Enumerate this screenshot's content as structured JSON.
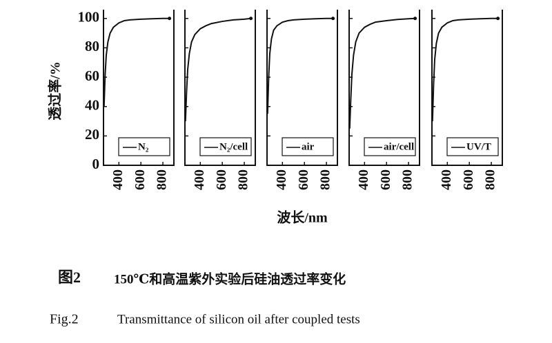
{
  "chart_data": [
    {
      "type": "line",
      "ylabel": "透过率/%",
      "x": [
        265,
        275,
        285,
        300,
        320,
        350,
        400,
        450,
        500,
        600,
        700,
        800,
        860
      ],
      "series": [
        {
          "name": "N₂",
          "color": "#111111",
          "values": [
            40,
            62,
            75,
            84,
            90,
            94,
            97,
            98.5,
            99,
            99.5,
            99.8,
            100,
            100
          ]
        }
      ],
      "xlim": [
        260,
        900
      ],
      "xticks": [
        400,
        600,
        800
      ],
      "ylim": [
        0,
        106
      ],
      "yticks": [
        0,
        20,
        40,
        60,
        80,
        100
      ]
    },
    {
      "type": "line",
      "x": [
        265,
        275,
        285,
        300,
        320,
        350,
        400,
        450,
        500,
        600,
        700,
        800,
        860
      ],
      "series": [
        {
          "name": "N₂/cell",
          "color": "#111111",
          "values": [
            30,
            50,
            65,
            76,
            84,
            89,
            93,
            95,
            96.5,
            98,
            99,
            99.5,
            100
          ]
        }
      ],
      "xlim": [
        260,
        900
      ],
      "xticks": [
        400,
        600,
        800
      ],
      "ylim": [
        0,
        106
      ],
      "yticks": [
        0,
        20,
        40,
        60,
        80,
        100
      ]
    },
    {
      "type": "line",
      "xlabel": "波长/nm",
      "x": [
        265,
        275,
        285,
        300,
        320,
        350,
        400,
        450,
        500,
        600,
        700,
        800,
        860
      ],
      "series": [
        {
          "name": "air",
          "color": "#111111",
          "values": [
            35,
            60,
            76,
            86,
            92,
            95,
            97.5,
            98.5,
            99,
            99.5,
            99.8,
            100,
            100
          ]
        }
      ],
      "xlim": [
        260,
        900
      ],
      "xticks": [
        400,
        600,
        800
      ],
      "ylim": [
        0,
        106
      ],
      "yticks": [
        0,
        20,
        40,
        60,
        80,
        100
      ]
    },
    {
      "type": "line",
      "x": [
        265,
        275,
        285,
        300,
        320,
        350,
        400,
        450,
        500,
        600,
        700,
        800,
        860
      ],
      "series": [
        {
          "name": "air/cell",
          "color": "#111111",
          "values": [
            25,
            45,
            62,
            75,
            84,
            90,
            94,
            96,
            97.5,
            98.5,
            99.3,
            99.8,
            100
          ]
        }
      ],
      "xlim": [
        260,
        900
      ],
      "xticks": [
        400,
        600,
        800
      ],
      "ylim": [
        0,
        106
      ],
      "yticks": [
        0,
        20,
        40,
        60,
        80,
        100
      ]
    },
    {
      "type": "line",
      "x": [
        265,
        275,
        285,
        300,
        320,
        350,
        400,
        450,
        500,
        600,
        700,
        800,
        860
      ],
      "series": [
        {
          "name": "UV/T",
          "color": "#111111",
          "values": [
            30,
            55,
            72,
            83,
            90,
            94,
            97,
            98.5,
            99,
            99.5,
            99.8,
            100,
            100
          ]
        }
      ],
      "xlim": [
        260,
        900
      ],
      "xticks": [
        400,
        600,
        800
      ],
      "ylim": [
        0,
        106
      ],
      "yticks": [
        0,
        20,
        40,
        60,
        80,
        100
      ]
    }
  ],
  "caption": {
    "cn_label": "图2",
    "cn_text": "150℃和高温紫外实验后硅油透过率变化",
    "en_label": "Fig.2",
    "en_text": "Transmittance of silicon oil after coupled tests"
  }
}
